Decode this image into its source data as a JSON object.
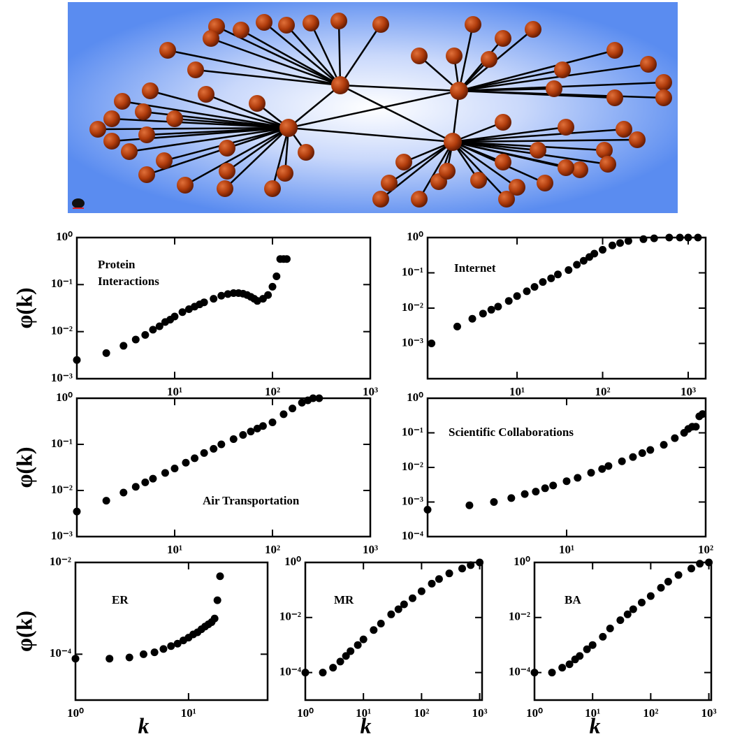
{
  "chart_data": [
    {
      "type": "scatter",
      "annotation": [
        "Protein",
        "Interactions"
      ],
      "ylabel": "φ(k)",
      "color": "#000000",
      "xscale": "log",
      "yscale": "log",
      "x": [
        1,
        2,
        3,
        4,
        5,
        6,
        7,
        8,
        9,
        10,
        12,
        14,
        16,
        18,
        20,
        25,
        30,
        35,
        40,
        45,
        50,
        55,
        60,
        65,
        70,
        80,
        90,
        100,
        110,
        120,
        130,
        140
      ],
      "values": [
        0.0025,
        0.0035,
        0.005,
        0.0068,
        0.0085,
        0.011,
        0.013,
        0.016,
        0.018,
        0.021,
        0.026,
        0.03,
        0.034,
        0.038,
        0.042,
        0.05,
        0.058,
        0.063,
        0.066,
        0.066,
        0.064,
        0.06,
        0.055,
        0.05,
        0.045,
        0.05,
        0.06,
        0.09,
        0.15,
        0.35,
        0.35,
        0.35
      ],
      "xlim": [
        1,
        1000
      ],
      "ylim": [
        0.001,
        1
      ],
      "xticks": [
        {
          "value": 10,
          "label": "10¹"
        },
        {
          "value": 100,
          "label": "10²"
        },
        {
          "value": 1000,
          "label": "10³"
        }
      ],
      "yticks": [
        {
          "value": 0.001,
          "label": "10⁻³"
        },
        {
          "value": 0.01,
          "label": "10⁻²"
        },
        {
          "value": 0.1,
          "label": "10⁻¹"
        },
        {
          "value": 1,
          "label": "10⁰"
        }
      ]
    },
    {
      "type": "scatter",
      "annotation": [
        "Internet"
      ],
      "color": "#000000",
      "xscale": "log",
      "yscale": "log",
      "x": [
        1,
        2,
        3,
        4,
        5,
        6,
        8,
        10,
        13,
        16,
        20,
        25,
        30,
        40,
        50,
        60,
        70,
        80,
        100,
        130,
        160,
        200,
        300,
        400,
        600,
        800,
        1000,
        1300
      ],
      "values": [
        0.001,
        0.003,
        0.005,
        0.007,
        0.009,
        0.011,
        0.016,
        0.022,
        0.03,
        0.04,
        0.055,
        0.07,
        0.09,
        0.12,
        0.17,
        0.22,
        0.28,
        0.35,
        0.45,
        0.6,
        0.7,
        0.8,
        0.9,
        0.95,
        1,
        1,
        1,
        1
      ],
      "xlim": [
        0.9,
        1600
      ],
      "ylim": [
        0.0001,
        1
      ],
      "xticks": [
        {
          "value": 10,
          "label": "10¹"
        },
        {
          "value": 100,
          "label": "10²"
        },
        {
          "value": 1000,
          "label": "10³"
        }
      ],
      "yticks": [
        {
          "value": 0.001,
          "label": "10⁻³"
        },
        {
          "value": 0.01,
          "label": "10⁻²"
        },
        {
          "value": 0.1,
          "label": "10⁻¹"
        },
        {
          "value": 1,
          "label": "10⁰"
        }
      ]
    },
    {
      "type": "scatter",
      "annotation": [
        "Air Transportation"
      ],
      "ylabel": "φ(k)",
      "color": "#000000",
      "xscale": "log",
      "yscale": "log",
      "x": [
        1,
        2,
        3,
        4,
        5,
        6,
        8,
        10,
        13,
        16,
        20,
        25,
        30,
        40,
        50,
        60,
        70,
        80,
        100,
        130,
        160,
        200,
        230,
        260,
        300
      ],
      "values": [
        0.0035,
        0.006,
        0.009,
        0.012,
        0.015,
        0.018,
        0.024,
        0.03,
        0.04,
        0.05,
        0.065,
        0.08,
        0.1,
        0.13,
        0.16,
        0.19,
        0.22,
        0.25,
        0.3,
        0.45,
        0.6,
        0.8,
        0.9,
        1,
        1
      ],
      "xlim": [
        1,
        1000
      ],
      "ylim": [
        0.001,
        1
      ],
      "xticks": [
        {
          "value": 10,
          "label": "10¹"
        },
        {
          "value": 100,
          "label": "10²"
        },
        {
          "value": 1000,
          "label": "10³"
        }
      ],
      "yticks": [
        {
          "value": 0.001,
          "label": "10⁻³"
        },
        {
          "value": 0.01,
          "label": "10⁻²"
        },
        {
          "value": 0.1,
          "label": "10⁻¹"
        },
        {
          "value": 1,
          "label": "10⁰"
        }
      ]
    },
    {
      "type": "scatter",
      "annotation": [
        "Scientific Collaborations"
      ],
      "color": "#000000",
      "xscale": "log",
      "yscale": "log",
      "x": [
        1,
        2,
        3,
        4,
        5,
        6,
        7,
        8,
        10,
        12,
        15,
        18,
        20,
        25,
        30,
        35,
        40,
        50,
        60,
        70,
        75,
        80,
        85,
        90,
        95
      ],
      "values": [
        0.0006,
        0.0008,
        0.001,
        0.0013,
        0.0017,
        0.002,
        0.0025,
        0.003,
        0.004,
        0.005,
        0.007,
        0.009,
        0.011,
        0.015,
        0.02,
        0.026,
        0.032,
        0.045,
        0.07,
        0.1,
        0.13,
        0.15,
        0.15,
        0.3,
        0.35
      ],
      "xlim": [
        1,
        100
      ],
      "ylim": [
        0.0001,
        1
      ],
      "xticks": [
        {
          "value": 10,
          "label": "10¹"
        },
        {
          "value": 100,
          "label": "10²"
        }
      ],
      "yticks": [
        {
          "value": 0.0001,
          "label": "10⁻⁴"
        },
        {
          "value": 0.001,
          "label": "10⁻³"
        },
        {
          "value": 0.01,
          "label": "10⁻²"
        },
        {
          "value": 0.1,
          "label": "10⁻¹"
        },
        {
          "value": 1,
          "label": "10⁰"
        }
      ]
    },
    {
      "type": "scatter",
      "annotation": [
        "ER"
      ],
      "ylabel": "φ(k)",
      "xlabel": "k",
      "color": "#000000",
      "xscale": "log",
      "yscale": "log",
      "x": [
        1,
        2,
        3,
        4,
        5,
        6,
        7,
        8,
        9,
        10,
        11,
        12,
        13,
        14,
        15,
        16,
        17,
        18,
        19
      ],
      "values": [
        8e-05,
        8e-05,
        8.5e-05,
        0.0001,
        0.00011,
        0.00013,
        0.00015,
        0.00017,
        0.0002,
        0.00023,
        0.00027,
        0.0003,
        0.00035,
        0.0004,
        0.00045,
        0.0005,
        0.0006,
        0.0015,
        0.005
      ],
      "xlim": [
        1,
        50
      ],
      "ylim": [
        1e-05,
        0.01
      ],
      "xticks": [
        {
          "value": 1,
          "label": "10⁰"
        },
        {
          "value": 10,
          "label": "10¹"
        }
      ],
      "yticks": [
        {
          "value": 0.0001,
          "label": "10⁻⁴"
        },
        {
          "value": 0.01,
          "label": "10⁻²"
        }
      ]
    },
    {
      "type": "scatter",
      "annotation": [
        "MR"
      ],
      "xlabel": "k",
      "color": "#000000",
      "xscale": "log",
      "yscale": "log",
      "x": [
        1,
        2,
        3,
        4,
        5,
        6,
        8,
        10,
        15,
        20,
        30,
        40,
        50,
        70,
        100,
        150,
        200,
        300,
        500,
        700,
        1000
      ],
      "values": [
        0.0001,
        0.0001,
        0.00015,
        0.00025,
        0.0004,
        0.0006,
        0.001,
        0.0016,
        0.0035,
        0.006,
        0.013,
        0.02,
        0.03,
        0.05,
        0.09,
        0.17,
        0.25,
        0.4,
        0.6,
        0.8,
        1
      ],
      "xlim": [
        1,
        1100
      ],
      "ylim": [
        1e-05,
        1
      ],
      "xticks": [
        {
          "value": 1,
          "label": "10⁰"
        },
        {
          "value": 10,
          "label": "10¹"
        },
        {
          "value": 100,
          "label": "10²"
        },
        {
          "value": 1000,
          "label": "10³"
        }
      ],
      "yticks": [
        {
          "value": 0.0001,
          "label": "10⁻⁴"
        },
        {
          "value": 0.01,
          "label": "10⁻²"
        },
        {
          "value": 1,
          "label": "10⁰"
        }
      ]
    },
    {
      "type": "scatter",
      "annotation": [
        "BA"
      ],
      "xlabel": "k",
      "color": "#000000",
      "xscale": "log",
      "yscale": "log",
      "x": [
        1,
        2,
        3,
        4,
        5,
        6,
        8,
        10,
        15,
        20,
        30,
        40,
        50,
        70,
        100,
        150,
        200,
        300,
        500,
        700,
        1000
      ],
      "values": [
        0.0001,
        0.0001,
        0.00015,
        0.0002,
        0.0003,
        0.0004,
        0.0007,
        0.001,
        0.002,
        0.004,
        0.008,
        0.013,
        0.02,
        0.035,
        0.06,
        0.12,
        0.2,
        0.35,
        0.6,
        0.9,
        1
      ],
      "xlim": [
        1,
        1100
      ],
      "ylim": [
        1e-05,
        1
      ],
      "xticks": [
        {
          "value": 1,
          "label": "10⁰"
        },
        {
          "value": 10,
          "label": "10¹"
        },
        {
          "value": 100,
          "label": "10²"
        },
        {
          "value": 1000,
          "label": "10³"
        }
      ],
      "yticks": [
        {
          "value": 0.0001,
          "label": "10⁻⁴"
        },
        {
          "value": 0.01,
          "label": "10⁻²"
        },
        {
          "value": 1,
          "label": "10⁰"
        }
      ]
    }
  ]
}
